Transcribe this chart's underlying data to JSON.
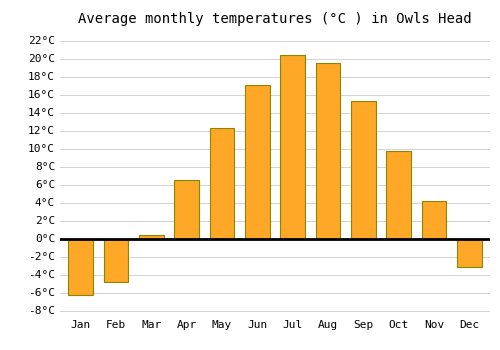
{
  "title": "Average monthly temperatures (°C ) in Owls Head",
  "months": [
    "Jan",
    "Feb",
    "Mar",
    "Apr",
    "May",
    "Jun",
    "Jul",
    "Aug",
    "Sep",
    "Oct",
    "Nov",
    "Dec"
  ],
  "values": [
    -6.3,
    -4.8,
    0.4,
    6.5,
    12.3,
    17.1,
    20.4,
    19.5,
    15.3,
    9.7,
    4.2,
    -3.2
  ],
  "bar_color": "#FFA726",
  "bar_edge_color": "#888800",
  "background_color": "#FFFFFF",
  "grid_color": "#CCCCCC",
  "ylim": [
    -8.5,
    23
  ],
  "yticks": [
    -8,
    -6,
    -4,
    -2,
    0,
    2,
    4,
    6,
    8,
    10,
    12,
    14,
    16,
    18,
    20,
    22
  ],
  "ytick_labels": [
    "-8°C",
    "-6°C",
    "-4°C",
    "-2°C",
    "0°C",
    "2°C",
    "4°C",
    "6°C",
    "8°C",
    "10°C",
    "12°C",
    "14°C",
    "16°C",
    "18°C",
    "20°C",
    "22°C"
  ],
  "title_fontsize": 10,
  "tick_fontsize": 8,
  "font_family": "monospace"
}
